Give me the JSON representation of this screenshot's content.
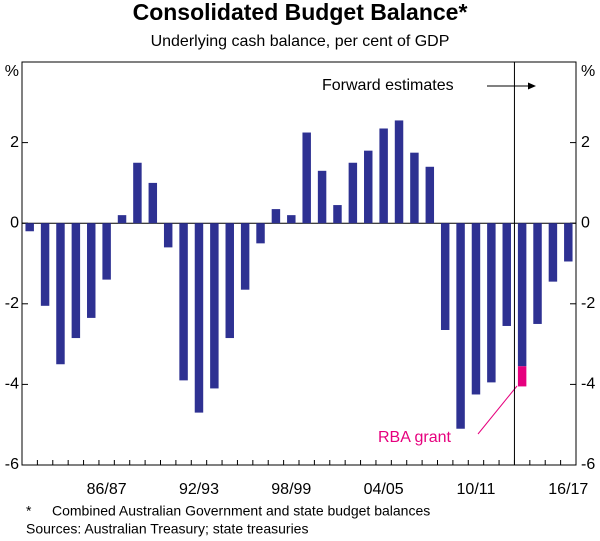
{
  "chart_data": {
    "type": "bar",
    "title": "Consolidated Budget Balance*",
    "subtitle": "Underlying cash balance, per cent of GDP",
    "categories": [
      null,
      null,
      null,
      null,
      null,
      "86/87",
      null,
      null,
      null,
      null,
      null,
      "92/93",
      null,
      null,
      null,
      null,
      null,
      "98/99",
      null,
      null,
      null,
      null,
      null,
      "04/05",
      null,
      null,
      null,
      null,
      null,
      "10/11",
      null,
      null,
      null,
      null,
      null,
      "16/17"
    ],
    "series": [
      {
        "color": "#2e3192",
        "values": [
          -0.2,
          -2.05,
          -3.5,
          -2.85,
          -2.35,
          -1.4,
          0.2,
          1.5,
          1.0,
          -0.6,
          -3.9,
          -4.7,
          -4.1,
          -2.85,
          -1.65,
          -0.5,
          0.35,
          0.2,
          2.25,
          1.3,
          0.45,
          1.5,
          1.8,
          2.35,
          2.55,
          1.75,
          1.4,
          -2.65,
          -5.1,
          -4.25,
          -3.95,
          -2.55,
          -3.55,
          -2.5,
          -1.45,
          -0.95
        ]
      },
      {
        "name": "RBA grant",
        "color": "#e6007e",
        "values": [
          null,
          null,
          null,
          null,
          null,
          null,
          null,
          null,
          null,
          null,
          null,
          null,
          null,
          null,
          null,
          null,
          null,
          null,
          null,
          null,
          null,
          null,
          null,
          null,
          null,
          null,
          null,
          null,
          null,
          null,
          null,
          null,
          -0.5,
          null,
          null,
          null
        ]
      }
    ],
    "ylim": [
      -6,
      4
    ],
    "yticks": [
      -6,
      -4,
      -2,
      0,
      2,
      {
        "value": 4,
        "label": "%"
      }
    ],
    "forward_estimates_label": "Forward estimates",
    "footnote_marker": "*",
    "footnote": "Combined Australian Government and state budget balances",
    "source": "Sources: Australian Treasury; state treasuries"
  }
}
